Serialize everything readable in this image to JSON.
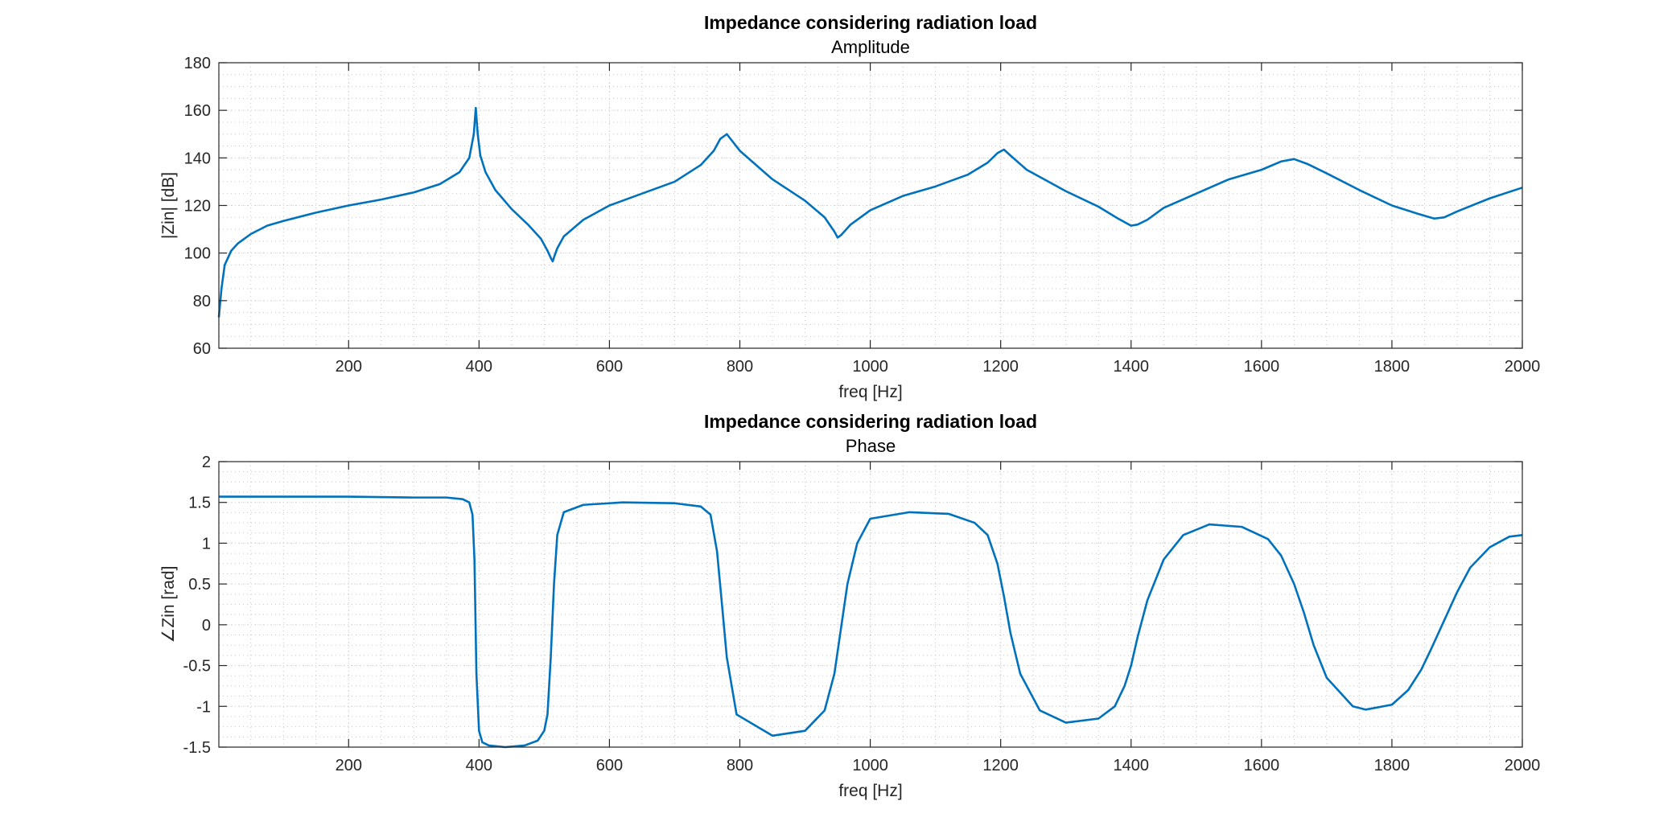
{
  "colors": {
    "series": "#0072BD",
    "axes": "#262626",
    "background": "#ffffff"
  },
  "chart_data": [
    {
      "type": "line",
      "title": "Impedance considering radiation load",
      "subtitle": "Amplitude",
      "xlabel": "freq [Hz]",
      "ylabel": "|Zin| [dB]",
      "xlim": [
        1,
        2000
      ],
      "ylim": [
        60,
        180
      ],
      "xticks": [
        200,
        400,
        600,
        800,
        1000,
        1200,
        1400,
        1600,
        1800,
        2000
      ],
      "yticks": [
        60,
        80,
        100,
        120,
        140,
        160,
        180
      ],
      "grid": "on (major and minor)",
      "series": [
        {
          "x": [
            1,
            5,
            10,
            20,
            30,
            50,
            75,
            100,
            150,
            200,
            250,
            300,
            340,
            370,
            385,
            392,
            395,
            398,
            402,
            410,
            425,
            450,
            475,
            495,
            505,
            510,
            513,
            516,
            520,
            530,
            560,
            600,
            650,
            700,
            740,
            760,
            770,
            780,
            800,
            850,
            900,
            930,
            945,
            950,
            955,
            970,
            1000,
            1050,
            1100,
            1150,
            1180,
            1195,
            1205,
            1215,
            1240,
            1300,
            1350,
            1380,
            1400,
            1410,
            1425,
            1450,
            1500,
            1550,
            1600,
            1630,
            1650,
            1670,
            1700,
            1750,
            1800,
            1840,
            1865,
            1880,
            1900,
            1950,
            2000
          ],
          "y": [
            73,
            85,
            95,
            101,
            104,
            108,
            111.5,
            113.5,
            117,
            120,
            122.5,
            125.5,
            129,
            134,
            140,
            150,
            161,
            150,
            141,
            134,
            126.5,
            118.5,
            112,
            106,
            101,
            98,
            96.5,
            99,
            102,
            107,
            114,
            120,
            125,
            130,
            137,
            143,
            148,
            150,
            143,
            131,
            122,
            115,
            109,
            106.5,
            107.5,
            112,
            118,
            124,
            128,
            133,
            138,
            142,
            143.5,
            141,
            135,
            126,
            119.5,
            114.5,
            111.5,
            112,
            114,
            119,
            125,
            131,
            135,
            138.5,
            139.5,
            137.5,
            133.5,
            126.5,
            120,
            116.5,
            114.5,
            115,
            117.5,
            123,
            127.5
          ]
        }
      ]
    },
    {
      "type": "line",
      "title": "Impedance considering radiation load",
      "subtitle": "Phase",
      "xlabel": "freq [Hz]",
      "ylabel": "∠Zin [rad]",
      "xlim": [
        1,
        2000
      ],
      "ylim": [
        -1.5,
        2
      ],
      "xticks": [
        200,
        400,
        600,
        800,
        1000,
        1200,
        1400,
        1600,
        1800,
        2000
      ],
      "yticks": [
        -1.5,
        -1,
        -0.5,
        0,
        0.5,
        1,
        1.5,
        2
      ],
      "ytick_labels": [
        "-1.5",
        "-1",
        "-0.5",
        "0",
        "0.5",
        "1",
        "1.5",
        "2"
      ],
      "grid": "on (major and minor)",
      "series": [
        {
          "x": [
            1,
            100,
            200,
            300,
            350,
            375,
            385,
            390,
            393,
            396,
            400,
            405,
            415,
            440,
            470,
            490,
            500,
            505,
            510,
            515,
            520,
            530,
            560,
            620,
            700,
            740,
            755,
            765,
            772,
            780,
            795,
            850,
            900,
            930,
            945,
            955,
            965,
            980,
            1000,
            1060,
            1120,
            1160,
            1180,
            1195,
            1205,
            1215,
            1230,
            1260,
            1300,
            1350,
            1375,
            1390,
            1400,
            1410,
            1425,
            1450,
            1480,
            1520,
            1570,
            1610,
            1630,
            1650,
            1665,
            1680,
            1700,
            1740,
            1760,
            1800,
            1825,
            1845,
            1860,
            1880,
            1900,
            1920,
            1950,
            1980,
            2000
          ],
          "y": [
            1.57,
            1.57,
            1.57,
            1.56,
            1.56,
            1.54,
            1.5,
            1.35,
            0.8,
            -0.6,
            -1.3,
            -1.44,
            -1.48,
            -1.5,
            -1.48,
            -1.42,
            -1.3,
            -1.1,
            -0.4,
            0.5,
            1.1,
            1.38,
            1.47,
            1.5,
            1.49,
            1.45,
            1.35,
            0.9,
            0.3,
            -0.4,
            -1.1,
            -1.36,
            -1.3,
            -1.05,
            -0.6,
            -0.05,
            0.5,
            1.0,
            1.3,
            1.38,
            1.36,
            1.25,
            1.1,
            0.75,
            0.35,
            -0.1,
            -0.6,
            -1.05,
            -1.2,
            -1.15,
            -1.0,
            -0.75,
            -0.5,
            -0.15,
            0.3,
            0.8,
            1.1,
            1.23,
            1.2,
            1.05,
            0.85,
            0.5,
            0.15,
            -0.25,
            -0.65,
            -1.0,
            -1.04,
            -0.98,
            -0.8,
            -0.55,
            -0.3,
            0.05,
            0.4,
            0.7,
            0.95,
            1.08,
            1.1
          ]
        }
      ]
    }
  ]
}
